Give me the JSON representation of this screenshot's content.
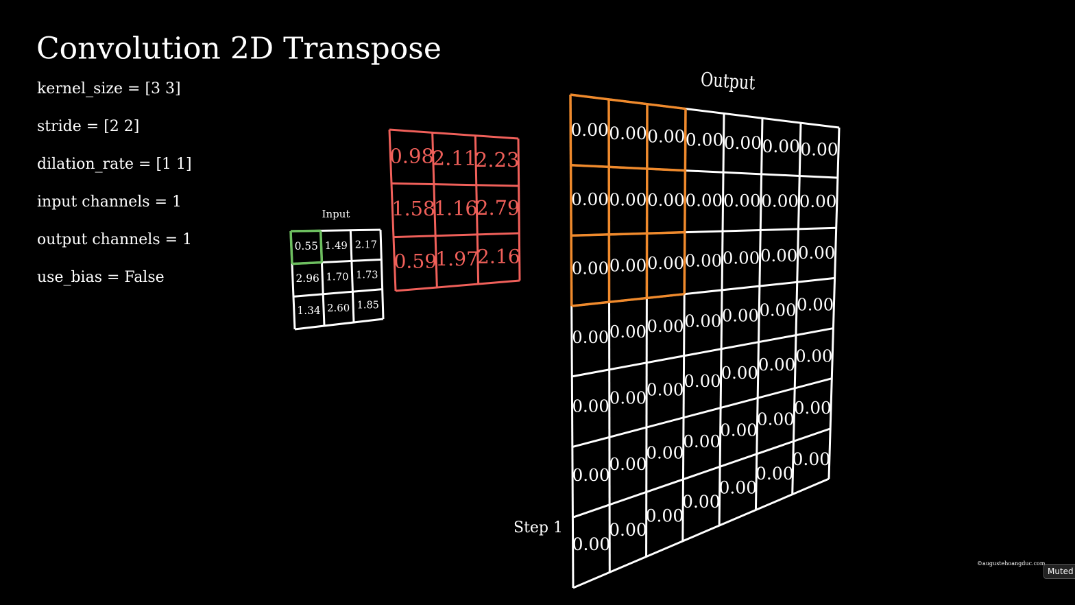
{
  "header": {
    "title": "Convolution 2D Transpose"
  },
  "params": [
    "kernel_size = [3 3]",
    "stride = [2 2]",
    "dilation_rate = [1 1]",
    "input channels = 1",
    "output channels = 1",
    "use_bias = False"
  ],
  "input": {
    "label": "Input",
    "cells": [
      [
        "0.55",
        "1.49",
        "2.17"
      ],
      [
        "2.96",
        "1.70",
        "1.73"
      ],
      [
        "1.34",
        "2.60",
        "1.85"
      ]
    ]
  },
  "kernel": {
    "cells": [
      [
        "0.98",
        "2.11",
        "2.23"
      ],
      [
        "1.58",
        "1.16",
        "2.79"
      ],
      [
        "0.59",
        "1.97",
        "2.16"
      ]
    ]
  },
  "output": {
    "label": "Output",
    "cells": [
      [
        "0.00",
        "0.00",
        "0.00",
        "0.00",
        "0.00",
        "0.00",
        "0.00"
      ],
      [
        "0.00",
        "0.00",
        "0.00",
        "0.00",
        "0.00",
        "0.00",
        "0.00"
      ],
      [
        "0.00",
        "0.00",
        "0.00",
        "0.00",
        "0.00",
        "0.00",
        "0.00"
      ],
      [
        "0.00",
        "0.00",
        "0.00",
        "0.00",
        "0.00",
        "0.00",
        "0.00"
      ],
      [
        "0.00",
        "0.00",
        "0.00",
        "0.00",
        "0.00",
        "0.00",
        "0.00"
      ],
      [
        "0.00",
        "0.00",
        "0.00",
        "0.00",
        "0.00",
        "0.00",
        "0.00"
      ],
      [
        "0.00",
        "0.00",
        "0.00",
        "0.00",
        "0.00",
        "0.00",
        "0.00"
      ]
    ]
  },
  "step": "Step 1",
  "watermark": "©augustehoangduc.com",
  "status": "Muted"
}
